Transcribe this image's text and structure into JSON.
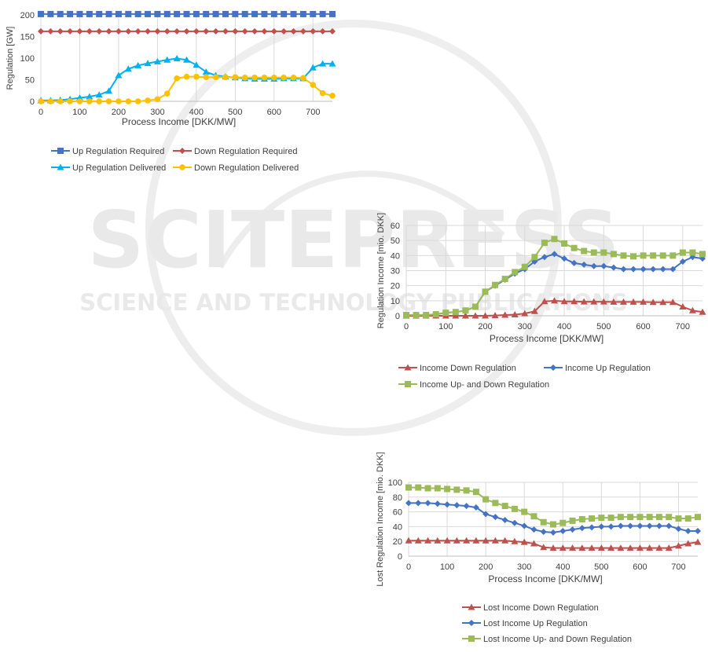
{
  "watermark": {
    "line1": "SCITEPRESS",
    "line2": "SCIENCE AND TECHNOLOGY PUBLICATIONS",
    "color": "#c8c8c8"
  },
  "chart_data": [
    {
      "type": "line",
      "xlabel": "Process Income [DKK/MW]",
      "ylabel": "Regulation [GW]",
      "xlim": [
        0,
        750
      ],
      "ylim": [
        0,
        200
      ],
      "xticks": [
        0,
        100,
        200,
        300,
        400,
        500,
        600,
        700
      ],
      "yticks": [
        0,
        50,
        100,
        150,
        200
      ],
      "grid": "vertical",
      "legend": "bottom",
      "legend_cols": 2,
      "x": [
        0,
        25,
        50,
        75,
        100,
        125,
        150,
        175,
        200,
        225,
        250,
        275,
        300,
        325,
        350,
        375,
        400,
        425,
        450,
        475,
        500,
        525,
        550,
        575,
        600,
        625,
        650,
        675,
        700,
        725,
        750
      ],
      "series": [
        {
          "name": "Up Regulation Required",
          "color": "#4472c4",
          "marker": "square",
          "values": [
            202,
            202,
            202,
            202,
            202,
            202,
            202,
            202,
            202,
            202,
            202,
            202,
            202,
            202,
            202,
            202,
            202,
            202,
            202,
            202,
            202,
            202,
            202,
            202,
            202,
            202,
            202,
            202,
            202,
            202,
            202
          ]
        },
        {
          "name": "Down Regulation Required",
          "color": "#c0504d",
          "marker": "diamond",
          "values": [
            162,
            162,
            162,
            162,
            162,
            162,
            162,
            162,
            162,
            162,
            162,
            162,
            162,
            162,
            162,
            162,
            162,
            162,
            162,
            162,
            162,
            162,
            162,
            162,
            162,
            162,
            162,
            162,
            162,
            162,
            162
          ]
        },
        {
          "name": "Up Regulation Delivered",
          "color": "#00b0f0",
          "marker": "triangle",
          "values": [
            2,
            2,
            3,
            5,
            8,
            11,
            15,
            24,
            60,
            75,
            83,
            88,
            92,
            96,
            99,
            96,
            84,
            68,
            60,
            57,
            55,
            53,
            52,
            52,
            52,
            53,
            53,
            53,
            78,
            87,
            87
          ]
        },
        {
          "name": "Down Regulation Delivered",
          "color": "#ffc000",
          "marker": "circle",
          "values": [
            0,
            0,
            0,
            0,
            0,
            0,
            0,
            0,
            0,
            0,
            0,
            2,
            5,
            18,
            53,
            57,
            57,
            56,
            56,
            56,
            56,
            55,
            55,
            55,
            55,
            55,
            55,
            54,
            38,
            19,
            13
          ]
        }
      ]
    },
    {
      "type": "line",
      "xlabel": "Process Income [DKK/MW]",
      "ylabel": "Regulation Income [mio. DKK]",
      "xlim": [
        0,
        750
      ],
      "ylim": [
        0,
        60
      ],
      "xticks": [
        0,
        100,
        200,
        300,
        400,
        500,
        600,
        700
      ],
      "yticks": [
        0,
        10,
        20,
        30,
        40,
        50,
        60
      ],
      "grid": "both",
      "legend": "bottom",
      "legend_cols": 2,
      "x": [
        0,
        25,
        50,
        75,
        100,
        125,
        150,
        175,
        200,
        225,
        250,
        275,
        300,
        325,
        350,
        375,
        400,
        425,
        450,
        475,
        500,
        525,
        550,
        575,
        600,
        625,
        650,
        675,
        700,
        725,
        750
      ],
      "series": [
        {
          "name": "Income Down Regulation",
          "color": "#c0504d",
          "marker": "triangle",
          "values": [
            0,
            0,
            0,
            0,
            0,
            0,
            0,
            0,
            0,
            0.2,
            0.5,
            0.8,
            1.5,
            3,
            9.5,
            10,
            9.5,
            9.5,
            9.3,
            9.3,
            9.3,
            9.2,
            9.2,
            9.2,
            9.2,
            9,
            9,
            9,
            6,
            3.5,
            2.5
          ]
        },
        {
          "name": "Income Up Regulation",
          "color": "#4472c4",
          "marker": "diamond",
          "values": [
            0.5,
            0.5,
            0.5,
            1,
            2,
            2.5,
            3.5,
            6,
            16,
            20,
            24,
            28,
            31,
            36,
            39,
            41,
            38,
            35,
            34,
            33,
            33,
            32,
            31,
            31,
            31,
            31,
            31,
            31,
            36,
            39,
            38
          ]
        },
        {
          "name": "Income Up- and Down Regulation",
          "color": "#9bbb59",
          "marker": "square",
          "values": [
            0.5,
            0.5,
            0.5,
            1,
            2,
            2.5,
            3.5,
            6,
            16,
            20.5,
            24.5,
            29,
            32.5,
            39,
            48.5,
            51,
            48,
            45,
            43,
            42,
            42,
            41,
            40,
            39.5,
            40,
            40,
            40,
            40,
            42,
            42,
            41
          ]
        }
      ]
    },
    {
      "type": "line",
      "xlabel": "Process Income [DKK/MW]",
      "ylabel": "Lost Regulation Income [mio. DKK]",
      "xlim": [
        0,
        750
      ],
      "ylim": [
        0,
        100
      ],
      "xticks": [
        0,
        100,
        200,
        300,
        400,
        500,
        600,
        700
      ],
      "yticks": [
        0,
        20,
        40,
        60,
        80,
        100
      ],
      "grid": "both",
      "legend": "bottom",
      "legend_cols": 1,
      "x": [
        0,
        25,
        50,
        75,
        100,
        125,
        150,
        175,
        200,
        225,
        250,
        275,
        300,
        325,
        350,
        375,
        400,
        425,
        450,
        475,
        500,
        525,
        550,
        575,
        600,
        625,
        650,
        675,
        700,
        725,
        750
      ],
      "series": [
        {
          "name": "Lost Income Down Regulation",
          "color": "#c0504d",
          "marker": "triangle",
          "values": [
            21,
            21,
            21,
            21,
            21,
            21,
            21,
            21,
            21,
            21,
            21,
            20,
            19,
            17,
            12,
            11,
            11,
            11,
            11,
            11,
            11,
            11,
            11,
            11,
            11,
            11,
            11,
            11,
            14,
            17,
            19
          ]
        },
        {
          "name": "Lost Income Up Regulation",
          "color": "#4472c4",
          "marker": "diamond",
          "values": [
            72,
            72,
            72,
            71,
            70,
            69,
            68,
            66,
            57,
            53,
            49,
            45,
            41,
            36,
            33,
            32,
            34,
            36,
            38,
            39,
            40,
            40,
            41,
            41,
            41,
            41,
            41,
            41,
            37,
            34,
            34
          ]
        },
        {
          "name": "Lost Income Up- and Down Regulation",
          "color": "#9bbb59",
          "marker": "square",
          "values": [
            93,
            93,
            92,
            92,
            91,
            90,
            89,
            87,
            77,
            72,
            68,
            64,
            60,
            54,
            46,
            43,
            45,
            48,
            50,
            51,
            52,
            52,
            53,
            53,
            53,
            53,
            53,
            53,
            51,
            51,
            53
          ]
        }
      ]
    }
  ]
}
